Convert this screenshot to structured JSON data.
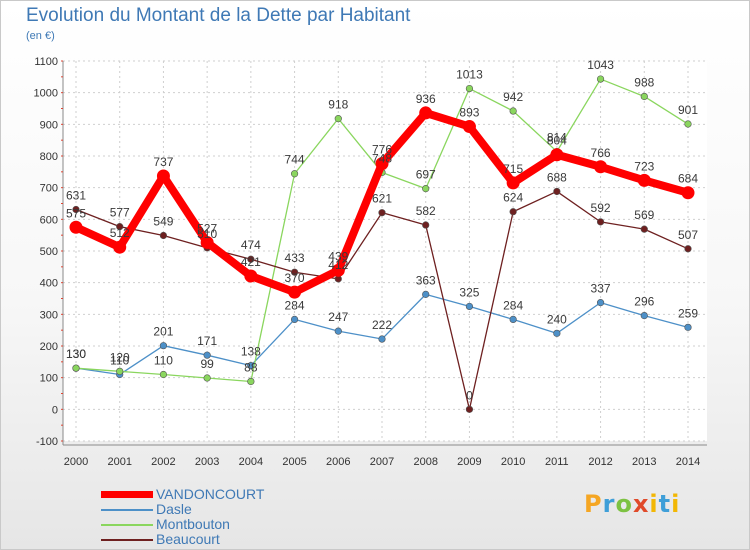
{
  "title": "Evolution du Montant de la Dette par Habitant",
  "subtitle": "(en €)",
  "logo": {
    "text": "Proxiti",
    "letters": [
      "P",
      "r",
      "o",
      "x",
      "i",
      "t",
      "i"
    ]
  },
  "chart_data": {
    "type": "line",
    "title": "Evolution du Montant de la Dette par Habitant",
    "ylabel": "(en €)",
    "xlabel": "",
    "x": [
      "2000",
      "2001",
      "2002",
      "2003",
      "2004",
      "2005",
      "2006",
      "2007",
      "2008",
      "2009",
      "2010",
      "2011",
      "2012",
      "2013",
      "2014"
    ],
    "ylim": [
      -100,
      1100
    ],
    "yticks": [
      -100,
      0,
      100,
      200,
      300,
      400,
      500,
      600,
      700,
      800,
      900,
      1000,
      1100
    ],
    "grid": true,
    "legend_position": "bottom-left",
    "series": [
      {
        "name": "VANDONCOURT",
        "color": "#ff0000",
        "values": [
          575,
          512,
          737,
          527,
          421,
          370,
          439,
          776,
          936,
          893,
          715,
          804,
          766,
          723,
          684
        ]
      },
      {
        "name": "Dasle",
        "color": "#4d90c8",
        "values": [
          130,
          110,
          201,
          171,
          138,
          284,
          247,
          222,
          363,
          325,
          284,
          240,
          337,
          296,
          259
        ]
      },
      {
        "name": "Montbouton",
        "color": "#8ad65e",
        "values": [
          130,
          120,
          110,
          99,
          88,
          744,
          918,
          748,
          697,
          1013,
          942,
          814,
          1043,
          988,
          901
        ]
      },
      {
        "name": "Beaucourt",
        "color": "#6e2020",
        "values": [
          631,
          577,
          549,
          510,
          474,
          433,
          412,
          621,
          582,
          0,
          624,
          688,
          592,
          569,
          507
        ]
      }
    ]
  }
}
